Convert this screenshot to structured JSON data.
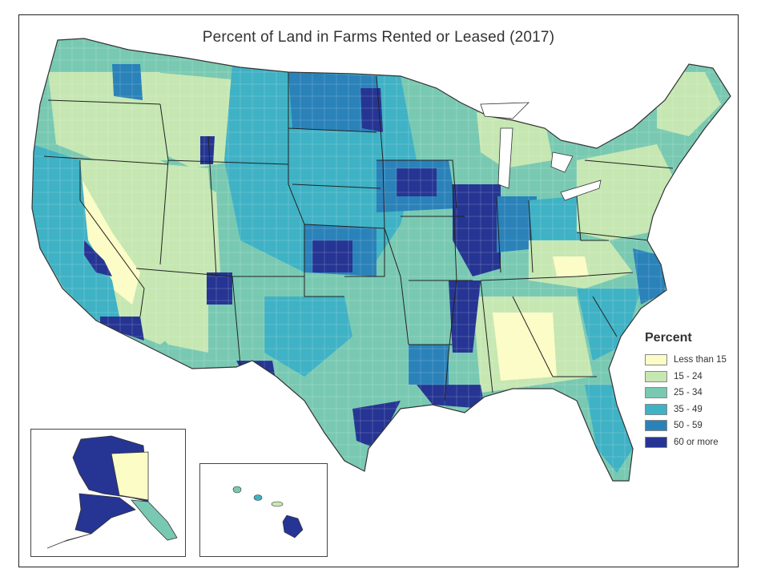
{
  "title": "Percent of Land in Farms Rented or Leased (2017)",
  "legend": {
    "title": "Percent",
    "items": [
      {
        "label": "Less than 15",
        "color": "#fbfcc6"
      },
      {
        "label": "15 - 24",
        "color": "#c6e7b2"
      },
      {
        "label": "25 - 34",
        "color": "#79c9b2"
      },
      {
        "label": "35 - 49",
        "color": "#3fb2c5"
      },
      {
        "label": "50 - 59",
        "color": "#2a82b9"
      },
      {
        "label": "60 or more",
        "color": "#263593"
      }
    ]
  },
  "insets": [
    {
      "region": "alaska"
    },
    {
      "region": "hawaii"
    }
  ]
}
